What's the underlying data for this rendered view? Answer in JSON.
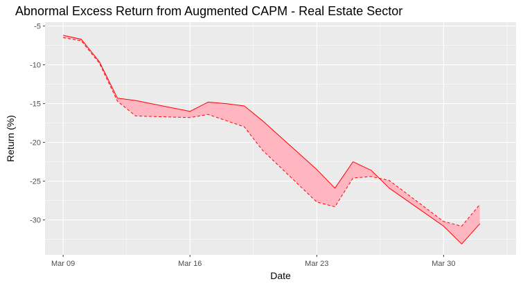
{
  "chart_data": {
    "type": "area",
    "title": "Abnormal Excess Return from Augmented CAPM - Real Estate Sector",
    "xlabel": "Date",
    "ylabel": "Return (%)",
    "xlim": [
      "2020-03-08",
      "2020-04-03"
    ],
    "ylim": [
      -34.5,
      -4.5
    ],
    "x_ticks": [
      {
        "date": "2020-03-09",
        "label": "Mar 09"
      },
      {
        "date": "2020-03-16",
        "label": "Mar 16"
      },
      {
        "date": "2020-03-23",
        "label": "Mar 23"
      },
      {
        "date": "2020-03-30",
        "label": "Mar 30"
      }
    ],
    "y_ticks": [
      -5,
      -10,
      -15,
      -20,
      -25,
      -30
    ],
    "grid": true,
    "colors": {
      "panel": "#ebebeb",
      "grid": "#ffffff",
      "ribbon_fill": "#ffb6c1",
      "line": "#ff0000"
    },
    "series": [
      {
        "style": "solid",
        "x": [
          "2020-03-09",
          "2020-03-10",
          "2020-03-11",
          "2020-03-12",
          "2020-03-13",
          "2020-03-16",
          "2020-03-17",
          "2020-03-18",
          "2020-03-19",
          "2020-03-20",
          "2020-03-23",
          "2020-03-24",
          "2020-03-25",
          "2020-03-26",
          "2020-03-27",
          "2020-03-30",
          "2020-03-31",
          "2020-04-01"
        ],
        "y": [
          -6.2,
          -6.7,
          -9.6,
          -14.3,
          -14.6,
          -16.0,
          -14.8,
          -15.0,
          -15.3,
          -17.2,
          -23.5,
          -25.9,
          -22.5,
          -23.6,
          -25.9,
          -30.8,
          -33.1,
          -30.5
        ]
      },
      {
        "style": "dashed",
        "x": [
          "2020-03-09",
          "2020-03-10",
          "2020-03-11",
          "2020-03-12",
          "2020-03-13",
          "2020-03-16",
          "2020-03-17",
          "2020-03-18",
          "2020-03-19",
          "2020-03-20",
          "2020-03-23",
          "2020-03-24",
          "2020-03-25",
          "2020-03-26",
          "2020-03-27",
          "2020-03-30",
          "2020-03-31",
          "2020-04-01"
        ],
        "y": [
          -6.5,
          -6.9,
          -9.8,
          -14.7,
          -16.6,
          -16.8,
          -16.4,
          -17.2,
          -18.0,
          -21.0,
          -27.7,
          -28.3,
          -24.6,
          -24.4,
          -24.9,
          -30.2,
          -30.8,
          -28.0
        ]
      }
    ]
  }
}
